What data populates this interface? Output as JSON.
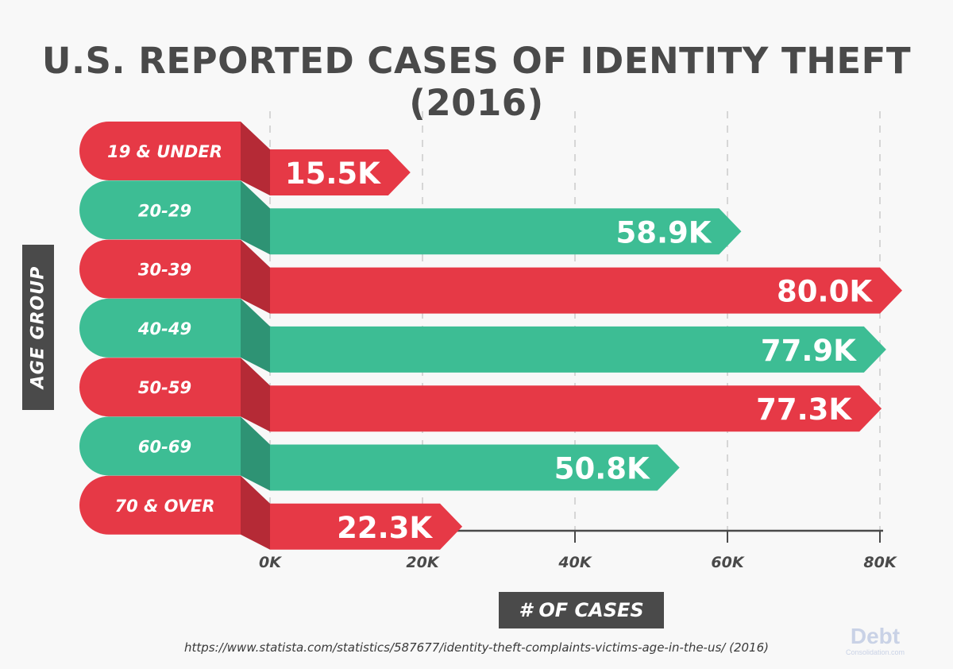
{
  "title": "U.S. REPORTED CASES OF IDENTITY THEFT (2016)",
  "source": "https://www.statista.com/statistics/587677/identity-theft-complaints-victims-age-in-the-us/ (2016)",
  "logo": {
    "line1": "Debt",
    "line2": "Consolidation.com"
  },
  "colors": {
    "red": "#e63946",
    "green": "#3dbd94",
    "dark": "#4a4a4a",
    "grid": "#d6d6d6"
  },
  "chart_data": {
    "type": "bar",
    "orientation": "horizontal",
    "xlabel": "# OF CASES",
    "ylabel": "AGE GROUP",
    "xlim": [
      0,
      80000
    ],
    "xticks": [
      "0K",
      "20K",
      "40K",
      "60K",
      "80K"
    ],
    "grid": "vertical dashed",
    "categories": [
      "19 & UNDER",
      "20-29",
      "30-39",
      "40-49",
      "50-59",
      "60-69",
      "70 & OVER"
    ],
    "values": [
      15500,
      58900,
      80000,
      77900,
      77300,
      50800,
      22300
    ],
    "data_labels": [
      "15.5K",
      "58.9K",
      "80.0K",
      "77.9K",
      "77.3K",
      "50.8K",
      "22.3K"
    ]
  }
}
